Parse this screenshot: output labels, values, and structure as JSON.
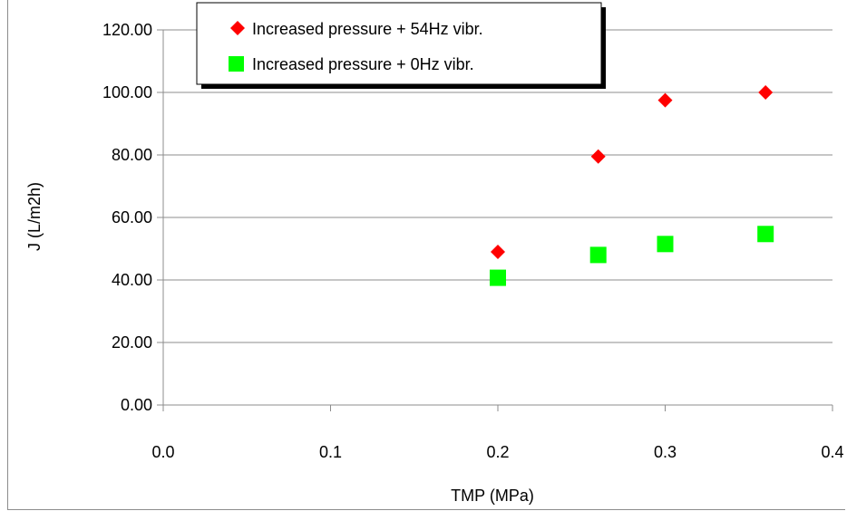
{
  "chart_data": {
    "type": "scatter",
    "title": "",
    "xlabel": "TMP (MPa)",
    "ylabel": "J  (L/m2h)",
    "xlim": [
      0.0,
      0.4
    ],
    "ylim": [
      0,
      120
    ],
    "x_ticks": [
      "0.0",
      "0.1",
      "0.2",
      "0.3",
      "0.4"
    ],
    "y_ticks": [
      "0.00",
      "20.00",
      "40.00",
      "60.00",
      "80.00",
      "100.00",
      "120.00"
    ],
    "grid": "horizontal",
    "legend_position": "top-left",
    "series": [
      {
        "name": "Increased pressure + 54Hz vibr.",
        "marker": "diamond",
        "color": "#ff0000",
        "x": [
          0.2,
          0.26,
          0.3,
          0.36
        ],
        "y": [
          49.0,
          79.5,
          97.5,
          100.0
        ]
      },
      {
        "name": "Increased pressure + 0Hz vibr.",
        "marker": "square",
        "color": "#00ff00",
        "x": [
          0.2,
          0.26,
          0.3,
          0.36
        ],
        "y": [
          40.7,
          48.0,
          51.5,
          54.7
        ]
      }
    ]
  }
}
